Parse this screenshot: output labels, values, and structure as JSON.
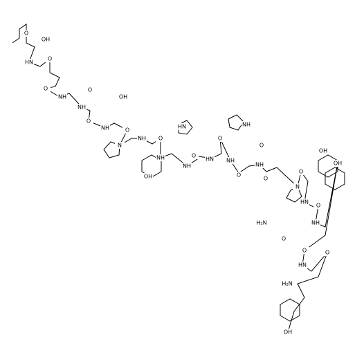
{
  "atom_labels": [
    "OH",
    "O",
    "HN",
    "O",
    "O",
    "NH",
    "O",
    "NH",
    "OH",
    "O",
    "NH",
    "N",
    "O",
    "NH",
    "O",
    "NH",
    "HN",
    "NH",
    "O",
    "HN",
    "NH",
    "O",
    "NH",
    "O",
    "O",
    "NH",
    "O",
    "N",
    "O",
    "OH",
    "HN",
    "O",
    "H₂N",
    "O",
    "NH",
    "OH",
    "O",
    "HN",
    "O",
    "H₂N",
    "OH",
    "OH"
  ]
}
